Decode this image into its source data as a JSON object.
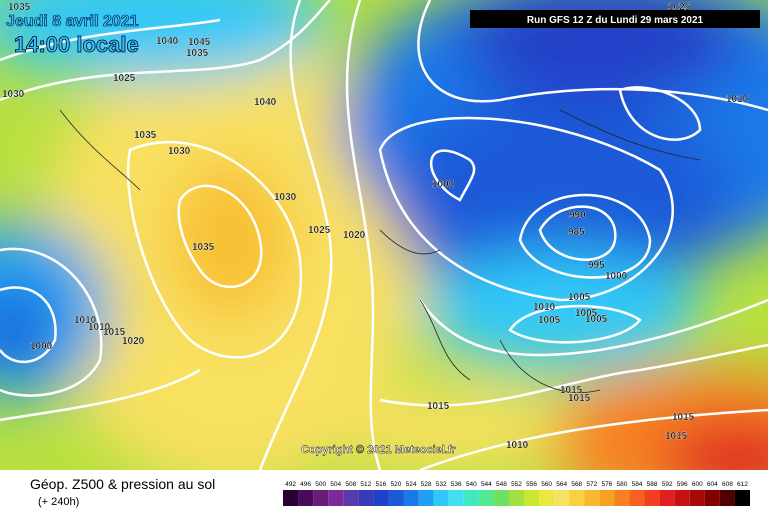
{
  "header": {
    "date": "Jeudi 8 avril 2021",
    "time": "14:00 locale",
    "run": "Run GFS 12 Z du Lundi 29 mars 2021"
  },
  "map": {
    "isobar_labels": [
      "1035",
      "1040",
      "1045",
      "1035",
      "1025",
      "1030",
      "1040",
      "1035",
      "1030",
      "1030",
      "1035",
      "1025",
      "1020",
      "1000",
      "990",
      "985",
      "995",
      "1000",
      "1005",
      "1010",
      "1005",
      "1005",
      "1005",
      "1015",
      "1010",
      "1010",
      "1015",
      "1020",
      "1000",
      "1015",
      "1015",
      "1015",
      "1015",
      "1010",
      "1010",
      "1025"
    ],
    "copyright": "Copyright © 2021 Meteociel.fr"
  },
  "footer": {
    "title": "Géop. Z500 & pression au sol",
    "lead": "(+ 240h)",
    "scale": {
      "labels": [
        "492",
        "496",
        "500",
        "504",
        "508",
        "512",
        "516",
        "520",
        "524",
        "528",
        "532",
        "536",
        "540",
        "544",
        "548",
        "552",
        "556",
        "560",
        "564",
        "568",
        "572",
        "576",
        "580",
        "584",
        "588",
        "592",
        "596",
        "600",
        "604",
        "608",
        "612"
      ],
      "colors": [
        "#2a0030",
        "#4a0a5a",
        "#6a1a7a",
        "#7a2a9a",
        "#5a3aaa",
        "#3a3ab8",
        "#2040c8",
        "#1a5ad8",
        "#1a78e8",
        "#20a0f0",
        "#30c8f8",
        "#40e0f0",
        "#40e8c0",
        "#50e890",
        "#70e060",
        "#a0e040",
        "#c8e830",
        "#e8e840",
        "#f8e060",
        "#f8d040",
        "#f8b830",
        "#f8a020",
        "#f88020",
        "#f86020",
        "#f04020",
        "#e02020",
        "#c81010",
        "#a80808",
        "#800000",
        "#500000",
        "#000000"
      ]
    }
  }
}
